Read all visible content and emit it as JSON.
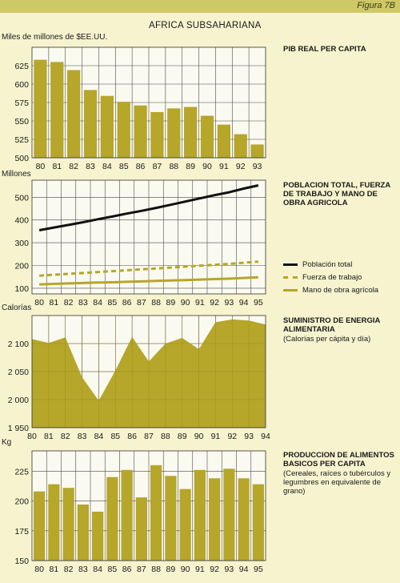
{
  "header": {
    "figure_label": "Figura 7B",
    "main_title": "AFRICA SUBSAHARIANA"
  },
  "colors": {
    "page_bg": "#f6f3ce",
    "plot_bg": "#fbfaf0",
    "olive": "#b6a62a",
    "black": "#111111",
    "grid": "#4a4a4a",
    "topbar": "#cfc866"
  },
  "chart_data": [
    {
      "type": "bar",
      "title": "PIB REAL PER CAPITA",
      "ylabel": "Miles de millones de $EE.UU.",
      "categories": [
        "80",
        "81",
        "82",
        "83",
        "84",
        "85",
        "86",
        "87",
        "88",
        "89",
        "90",
        "91",
        "92",
        "93"
      ],
      "values": [
        633,
        630,
        619,
        592,
        584,
        576,
        571,
        562,
        567,
        569,
        557,
        545,
        532,
        518
      ],
      "ylim": [
        500,
        650
      ],
      "yticks": [
        "500",
        "525",
        "550",
        "575",
        "600",
        "625"
      ],
      "grid": true
    },
    {
      "type": "line",
      "title": "POBLACION TOTAL, FUERZA DE TRABAJO Y MANO DE OBRA AGRICOLA",
      "ylabel": "Millones",
      "categories": [
        "80",
        "81",
        "82",
        "83",
        "84",
        "85",
        "86",
        "87",
        "88",
        "89",
        "90",
        "91",
        "92",
        "93",
        "94",
        "95"
      ],
      "series": [
        {
          "name": "Población total",
          "values": [
            355,
            367,
            378,
            390,
            403,
            415,
            428,
            440,
            453,
            467,
            481,
            495,
            509,
            522,
            538,
            552
          ]
        },
        {
          "name": "Fuerza de trabajo",
          "values": [
            155,
            159,
            163,
            167,
            171,
            175,
            179,
            183,
            187,
            191,
            195,
            199,
            203,
            207,
            212,
            217
          ]
        },
        {
          "name": "Mano de obra agrícola",
          "values": [
            117,
            119,
            121,
            123,
            125,
            126,
            128,
            130,
            132,
            134,
            136,
            138,
            140,
            142,
            145,
            148
          ]
        }
      ],
      "ylim": [
        75,
        575
      ],
      "yticks": [
        "100",
        "200",
        "300",
        "400",
        "500"
      ],
      "grid": true,
      "legend": "right"
    },
    {
      "type": "area",
      "title": "SUMINISTRO DE ENERGIA ALIMENTARIA",
      "subtitle": "(Calorías per cápita y día)",
      "ylabel": "Calorías",
      "categories": [
        "80",
        "81",
        "82",
        "83",
        "84",
        "85",
        "86",
        "87",
        "88",
        "89",
        "90",
        "91",
        "92",
        "93",
        "94"
      ],
      "values": [
        2108,
        2101,
        2111,
        2040,
        1998,
        2052,
        2112,
        2068,
        2100,
        2110,
        2090,
        2138,
        2143,
        2141,
        2134
      ],
      "ylim": [
        1950,
        2150
      ],
      "yticks": [
        "1 950",
        "2 000",
        "2 050",
        "2 100"
      ],
      "grid": true
    },
    {
      "type": "bar",
      "title": "PRODUCCION DE ALIMENTOS BASICOS PER CAPITA",
      "subtitle": "(Cereales, raíces o tubérculos y legumbres en equivalente de grano)",
      "ylabel": "Kg",
      "categories": [
        "80",
        "81",
        "82",
        "83",
        "84",
        "85",
        "86",
        "87",
        "88",
        "89",
        "90",
        "91",
        "92",
        "93",
        "94",
        "95"
      ],
      "values": [
        208,
        214,
        211,
        197,
        191,
        220,
        226,
        203,
        230,
        221,
        210,
        226,
        219,
        227,
        219,
        214
      ],
      "ylim": [
        150,
        242
      ],
      "yticks": [
        "150",
        "175",
        "200",
        "225"
      ],
      "grid": true
    }
  ]
}
